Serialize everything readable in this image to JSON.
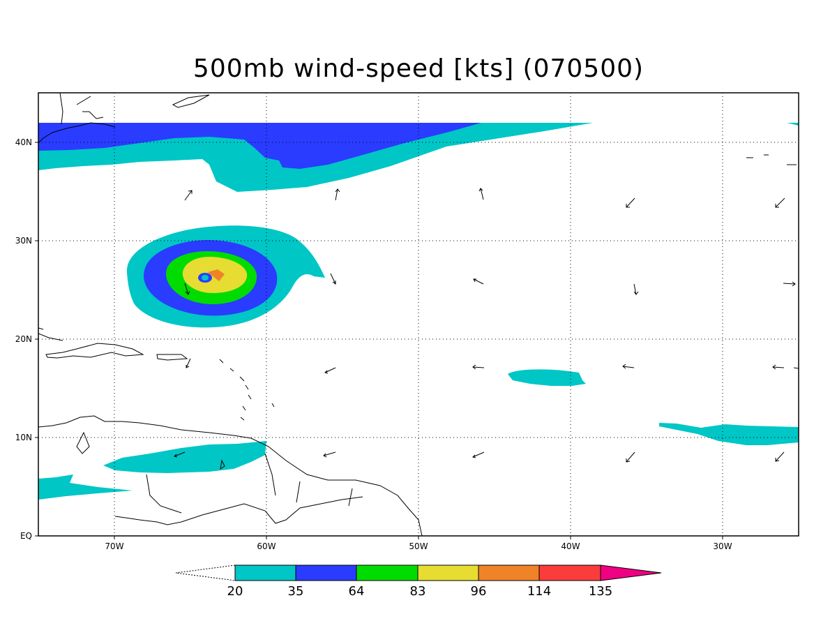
{
  "title": "500mb wind-speed [kts] (070500)",
  "lat_labels": [
    "40N",
    "30N",
    "20N",
    "10N",
    "EQ"
  ],
  "lon_labels": [
    "70W",
    "60W",
    "50W",
    "40W",
    "30W"
  ],
  "colorbar": {
    "thresholds": [
      "20",
      "35",
      "64",
      "83",
      "96",
      "114",
      "135"
    ],
    "colors": [
      "#00c6c6",
      "#2a3cff",
      "#00dc00",
      "#e6dc32",
      "#f08228",
      "#fa3c3c",
      "#f00082"
    ]
  },
  "map_extent": {
    "lon_west": -75,
    "lon_east": -25,
    "lat_south": 0,
    "lat_north": 45
  }
}
